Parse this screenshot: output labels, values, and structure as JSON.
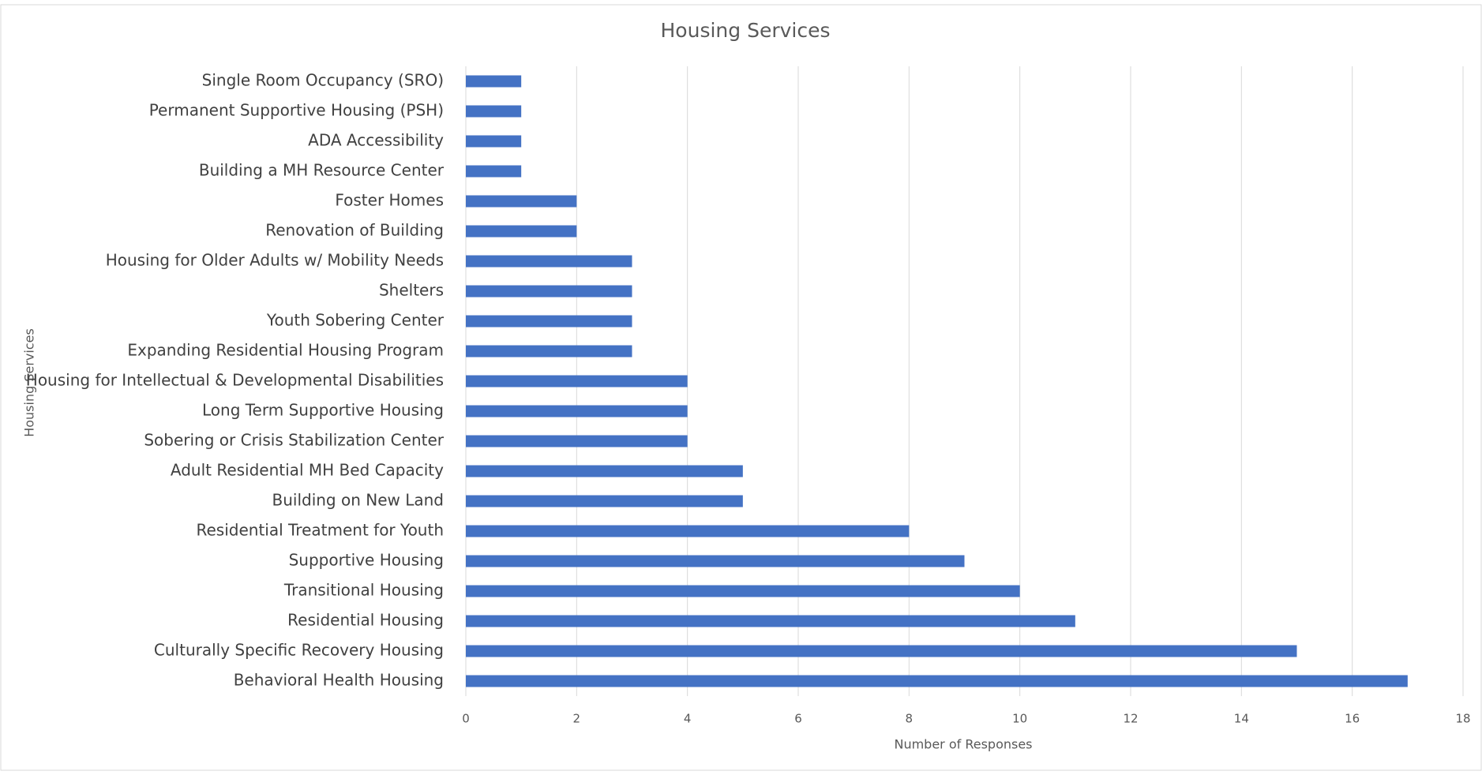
{
  "chart_data": {
    "type": "bar",
    "orientation": "horizontal",
    "title": "Housing Services",
    "x_label": "Number of Responses",
    "y_label": "Housing Services",
    "categories": [
      "Single Room Occupancy (SRO)",
      "Permanent Supportive Housing (PSH)",
      "ADA Accessibility",
      "Building a MH Resource Center",
      "Foster Homes",
      "Renovation of Building",
      "Housing for Older Adults w/ Mobility Needs",
      "Shelters",
      "Youth Sobering Center",
      "Expanding Residential Housing Program",
      "Housing for Intellectual & Developmental Disabilities",
      "Long Term Supportive Housing",
      "Sobering or Crisis Stabilization Center",
      "Adult Residential MH Bed Capacity",
      "Building on New Land",
      "Residential Treatment for Youth",
      "Supportive Housing",
      "Transitional Housing",
      "Residential Housing",
      "Culturally Specific Recovery Housing",
      "Behavioral Health Housing"
    ],
    "values": [
      1,
      1,
      1,
      1,
      2,
      2,
      3,
      3,
      3,
      3,
      4,
      4,
      4,
      5,
      5,
      8,
      9,
      10,
      11,
      15,
      17
    ],
    "color": "#4472c4",
    "xlim": [
      0,
      18
    ],
    "xticks": [
      0,
      2,
      4,
      6,
      8,
      10,
      12,
      14,
      16,
      18
    ],
    "grid": true
  }
}
